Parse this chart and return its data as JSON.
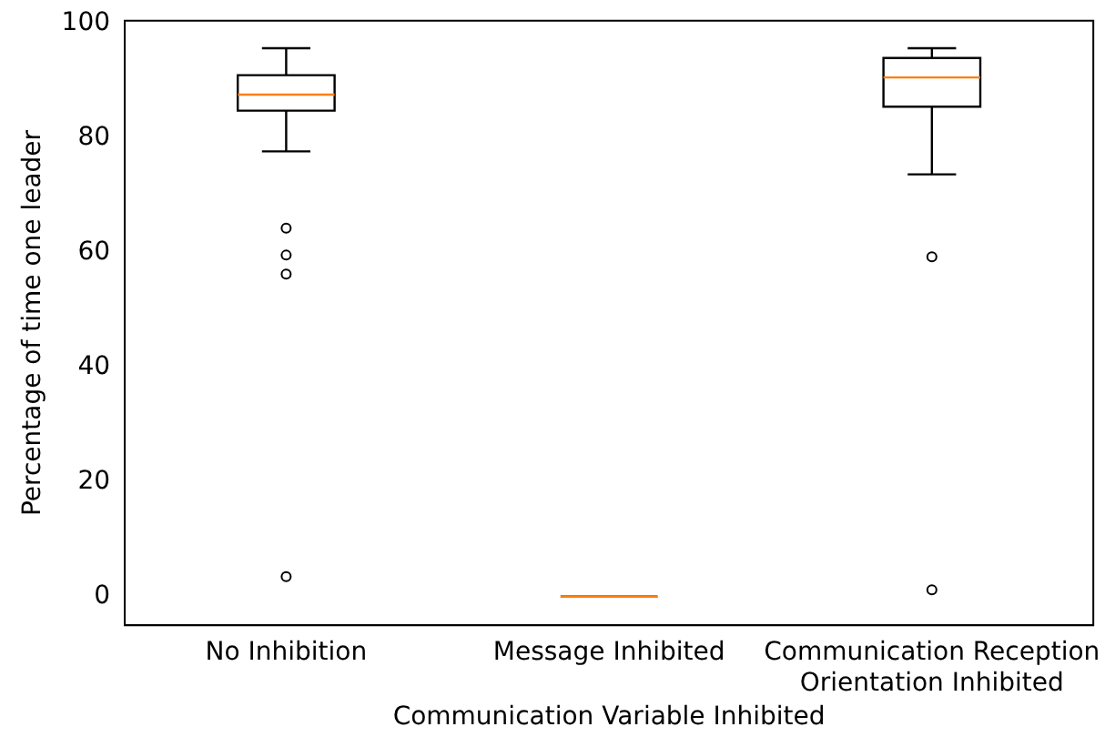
{
  "chart_data": {
    "type": "box",
    "xlabel": "Communication Variable Inhibited",
    "ylabel": "Percentage of time one leader",
    "categories": [
      "No Inhibition",
      "Message Inhibited",
      "Communication Reception\nOrientation Inhibited"
    ],
    "boxes": [
      {
        "low": 77.7,
        "q1": 84.8,
        "median": 87.6,
        "q3": 91.0,
        "high": 95.7,
        "outliers": [
          64.3,
          59.6,
          56.3,
          3.5
        ]
      },
      {
        "low": 0,
        "q1": 0,
        "median": 0,
        "q3": 0,
        "high": 0
      },
      {
        "low": 73.7,
        "q1": 85.5,
        "median": 90.6,
        "q3": 94.0,
        "high": 95.7,
        "outliers": [
          59.3,
          1.2
        ]
      }
    ],
    "ylim": [
      -5,
      100.5
    ],
    "yticks": [
      0,
      20,
      40,
      60,
      80,
      100
    ]
  }
}
